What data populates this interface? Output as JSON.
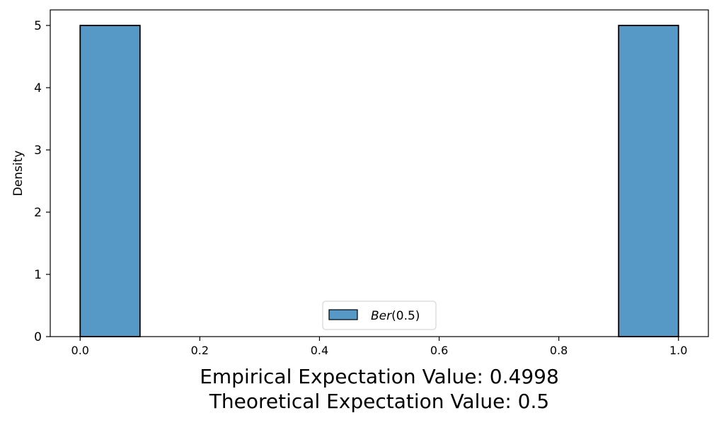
{
  "chart_data": {
    "type": "bar",
    "subtype": "histogram",
    "bins": [
      {
        "x0": 0.0,
        "x1": 0.1,
        "value": 5.0
      },
      {
        "x0": 0.1,
        "x1": 0.2,
        "value": 0.0
      },
      {
        "x0": 0.2,
        "x1": 0.3,
        "value": 0.0
      },
      {
        "x0": 0.3,
        "x1": 0.4,
        "value": 0.0
      },
      {
        "x0": 0.4,
        "x1": 0.5,
        "value": 0.0
      },
      {
        "x0": 0.5,
        "x1": 0.6,
        "value": 0.0
      },
      {
        "x0": 0.6,
        "x1": 0.7,
        "value": 0.0
      },
      {
        "x0": 0.7,
        "x1": 0.8,
        "value": 0.0
      },
      {
        "x0": 0.8,
        "x1": 0.9,
        "value": 0.0
      },
      {
        "x0": 0.9,
        "x1": 1.0,
        "value": 5.0
      }
    ],
    "series_name_prefix": "Ber",
    "series_name_suffix": "(0.5)",
    "ylabel": "Density",
    "xlabel_line1": "Empirical Expectation Value: 0.4998",
    "xlabel_line2": "Theoretical Expectation Value: 0.5",
    "xlim": [
      -0.05,
      1.05
    ],
    "ylim": [
      0,
      5.25
    ],
    "xticks": [
      0.0,
      0.2,
      0.4,
      0.6,
      0.8,
      1.0
    ],
    "xtick_labels": [
      "0.0",
      "0.2",
      "0.4",
      "0.6",
      "0.8",
      "1.0"
    ],
    "yticks": [
      0,
      1,
      2,
      3,
      4,
      5
    ],
    "ytick_labels": [
      "0",
      "1",
      "2",
      "3",
      "4",
      "5"
    ],
    "grid": false,
    "legend_position": "lower center",
    "bar_color": "#5799c6",
    "edge_color": "#000000"
  }
}
